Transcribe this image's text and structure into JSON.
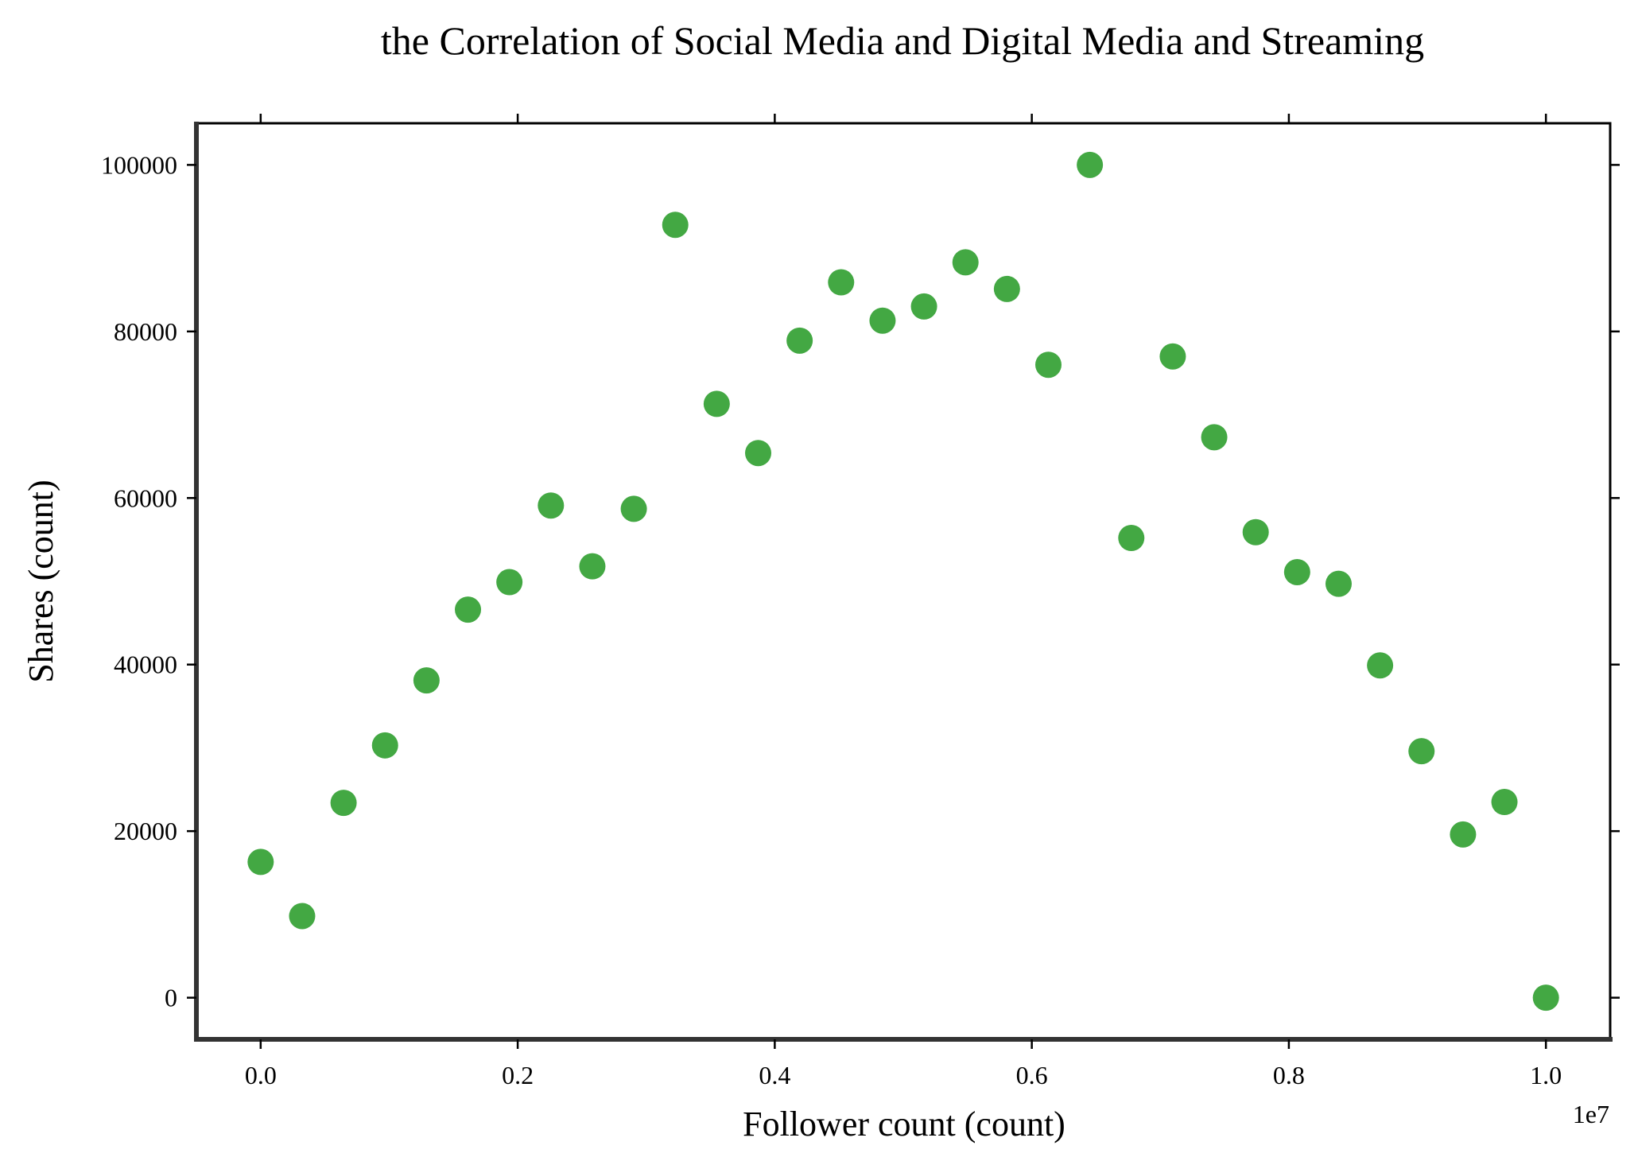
{
  "chart_data": {
    "type": "scatter",
    "title": "the Correlation of Social Media and Digital Media and Streaming",
    "xlabel": "Follower count (count)",
    "ylabel": "Shares (count)",
    "x_offset_label": "1e7",
    "x_tick_values": [
      0.0,
      0.2,
      0.4,
      0.6,
      0.8,
      1.0
    ],
    "x_tick_labels": [
      "0.0",
      "0.2",
      "0.4",
      "0.6",
      "0.8",
      "1.0"
    ],
    "y_tick_values": [
      0,
      20000,
      40000,
      60000,
      80000,
      100000
    ],
    "y_tick_labels": [
      "0",
      "20000",
      "40000",
      "60000",
      "80000",
      "100000"
    ],
    "xlim": [
      -0.05,
      1.05
    ],
    "ylim": [
      -5000,
      105000
    ],
    "x_scale": 10000000,
    "grid": false,
    "color": "#43a843",
    "series": [
      {
        "x": [
          0,
          322581,
          645161,
          967742,
          1290323,
          1612903,
          1935484,
          2258065,
          2580645,
          2903226,
          3225806,
          3548387,
          3870968,
          4193548,
          4516129,
          4838710,
          5161290,
          5483871,
          5806452,
          6129032,
          6451613,
          6774194,
          7096774,
          7419355,
          7741935,
          8064516,
          8387097,
          8709677,
          9032258,
          9354839,
          9677419,
          10000000
        ],
        "y": [
          16300,
          9800,
          23400,
          30300,
          38100,
          46600,
          49900,
          59100,
          51800,
          58700,
          92800,
          71300,
          65400,
          78900,
          85900,
          81300,
          83000,
          88300,
          85100,
          76000,
          100000,
          55200,
          77000,
          67300,
          55900,
          51100,
          49700,
          39900,
          29600,
          19600,
          23500,
          0
        ]
      }
    ]
  }
}
